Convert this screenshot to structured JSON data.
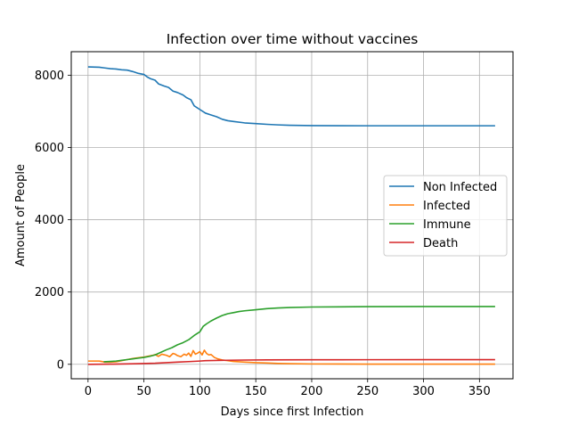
{
  "chart_data": {
    "type": "line",
    "title": "Infection over time without vaccines",
    "xlabel": "Days since first Infection",
    "ylabel": "Amount of People",
    "xlim": [
      -15,
      380
    ],
    "ylim": [
      -400,
      8650
    ],
    "xticks": [
      0,
      50,
      100,
      150,
      200,
      250,
      300,
      350
    ],
    "yticks": [
      0,
      2000,
      4000,
      6000,
      8000
    ],
    "grid": true,
    "legend_position": "center-right",
    "series": [
      {
        "name": "Non Infected",
        "color": "#1f77b4",
        "points": [
          [
            0,
            8230
          ],
          [
            10,
            8220
          ],
          [
            15,
            8200
          ],
          [
            20,
            8180
          ],
          [
            25,
            8170
          ],
          [
            30,
            8150
          ],
          [
            35,
            8140
          ],
          [
            40,
            8100
          ],
          [
            45,
            8050
          ],
          [
            50,
            8020
          ],
          [
            53,
            7950
          ],
          [
            56,
            7900
          ],
          [
            60,
            7860
          ],
          [
            63,
            7760
          ],
          [
            68,
            7700
          ],
          [
            72,
            7660
          ],
          [
            76,
            7560
          ],
          [
            80,
            7520
          ],
          [
            85,
            7450
          ],
          [
            88,
            7380
          ],
          [
            92,
            7320
          ],
          [
            95,
            7150
          ],
          [
            100,
            7050
          ],
          [
            105,
            6950
          ],
          [
            110,
            6900
          ],
          [
            115,
            6850
          ],
          [
            120,
            6780
          ],
          [
            125,
            6740
          ],
          [
            130,
            6720
          ],
          [
            140,
            6680
          ],
          [
            150,
            6660
          ],
          [
            160,
            6640
          ],
          [
            170,
            6625
          ],
          [
            180,
            6615
          ],
          [
            200,
            6605
          ],
          [
            250,
            6600
          ],
          [
            300,
            6600
          ],
          [
            364,
            6600
          ]
        ]
      },
      {
        "name": "Infected",
        "color": "#ff7f0e",
        "points": [
          [
            0,
            90
          ],
          [
            10,
            90
          ],
          [
            12,
            80
          ],
          [
            15,
            60
          ],
          [
            20,
            60
          ],
          [
            25,
            70
          ],
          [
            30,
            100
          ],
          [
            35,
            130
          ],
          [
            40,
            160
          ],
          [
            45,
            180
          ],
          [
            50,
            200
          ],
          [
            55,
            230
          ],
          [
            58,
            250
          ],
          [
            60,
            270
          ],
          [
            63,
            220
          ],
          [
            66,
            280
          ],
          [
            70,
            250
          ],
          [
            73,
            210
          ],
          [
            76,
            300
          ],
          [
            78,
            280
          ],
          [
            80,
            240
          ],
          [
            83,
            210
          ],
          [
            86,
            280
          ],
          [
            88,
            250
          ],
          [
            90,
            310
          ],
          [
            92,
            220
          ],
          [
            94,
            380
          ],
          [
            96,
            280
          ],
          [
            98,
            310
          ],
          [
            100,
            350
          ],
          [
            102,
            260
          ],
          [
            104,
            390
          ],
          [
            106,
            300
          ],
          [
            108,
            260
          ],
          [
            110,
            270
          ],
          [
            113,
            190
          ],
          [
            116,
            150
          ],
          [
            120,
            120
          ],
          [
            125,
            100
          ],
          [
            130,
            80
          ],
          [
            135,
            70
          ],
          [
            140,
            60
          ],
          [
            150,
            45
          ],
          [
            160,
            35
          ],
          [
            170,
            25
          ],
          [
            180,
            18
          ],
          [
            200,
            10
          ],
          [
            250,
            5
          ],
          [
            300,
            5
          ],
          [
            364,
            5
          ]
        ]
      },
      {
        "name": "Immune",
        "color": "#2ca02c",
        "points": [
          [
            14,
            70
          ],
          [
            20,
            80
          ],
          [
            25,
            90
          ],
          [
            30,
            110
          ],
          [
            35,
            130
          ],
          [
            40,
            150
          ],
          [
            45,
            170
          ],
          [
            50,
            190
          ],
          [
            55,
            220
          ],
          [
            60,
            260
          ],
          [
            65,
            330
          ],
          [
            70,
            400
          ],
          [
            75,
            460
          ],
          [
            80,
            540
          ],
          [
            85,
            600
          ],
          [
            90,
            680
          ],
          [
            95,
            800
          ],
          [
            100,
            900
          ],
          [
            103,
            1050
          ],
          [
            106,
            1120
          ],
          [
            110,
            1200
          ],
          [
            115,
            1280
          ],
          [
            120,
            1350
          ],
          [
            125,
            1400
          ],
          [
            130,
            1430
          ],
          [
            135,
            1460
          ],
          [
            140,
            1480
          ],
          [
            150,
            1510
          ],
          [
            160,
            1540
          ],
          [
            170,
            1560
          ],
          [
            180,
            1570
          ],
          [
            200,
            1585
          ],
          [
            250,
            1595
          ],
          [
            300,
            1600
          ],
          [
            364,
            1600
          ]
        ]
      },
      {
        "name": "Death",
        "color": "#d62728",
        "points": [
          [
            0,
            0
          ],
          [
            20,
            5
          ],
          [
            40,
            15
          ],
          [
            60,
            30
          ],
          [
            70,
            45
          ],
          [
            80,
            60
          ],
          [
            90,
            75
          ],
          [
            100,
            90
          ],
          [
            105,
            100
          ],
          [
            110,
            105
          ],
          [
            120,
            110
          ],
          [
            140,
            118
          ],
          [
            160,
            122
          ],
          [
            200,
            125
          ],
          [
            250,
            127
          ],
          [
            300,
            128
          ],
          [
            364,
            128
          ]
        ]
      }
    ]
  }
}
